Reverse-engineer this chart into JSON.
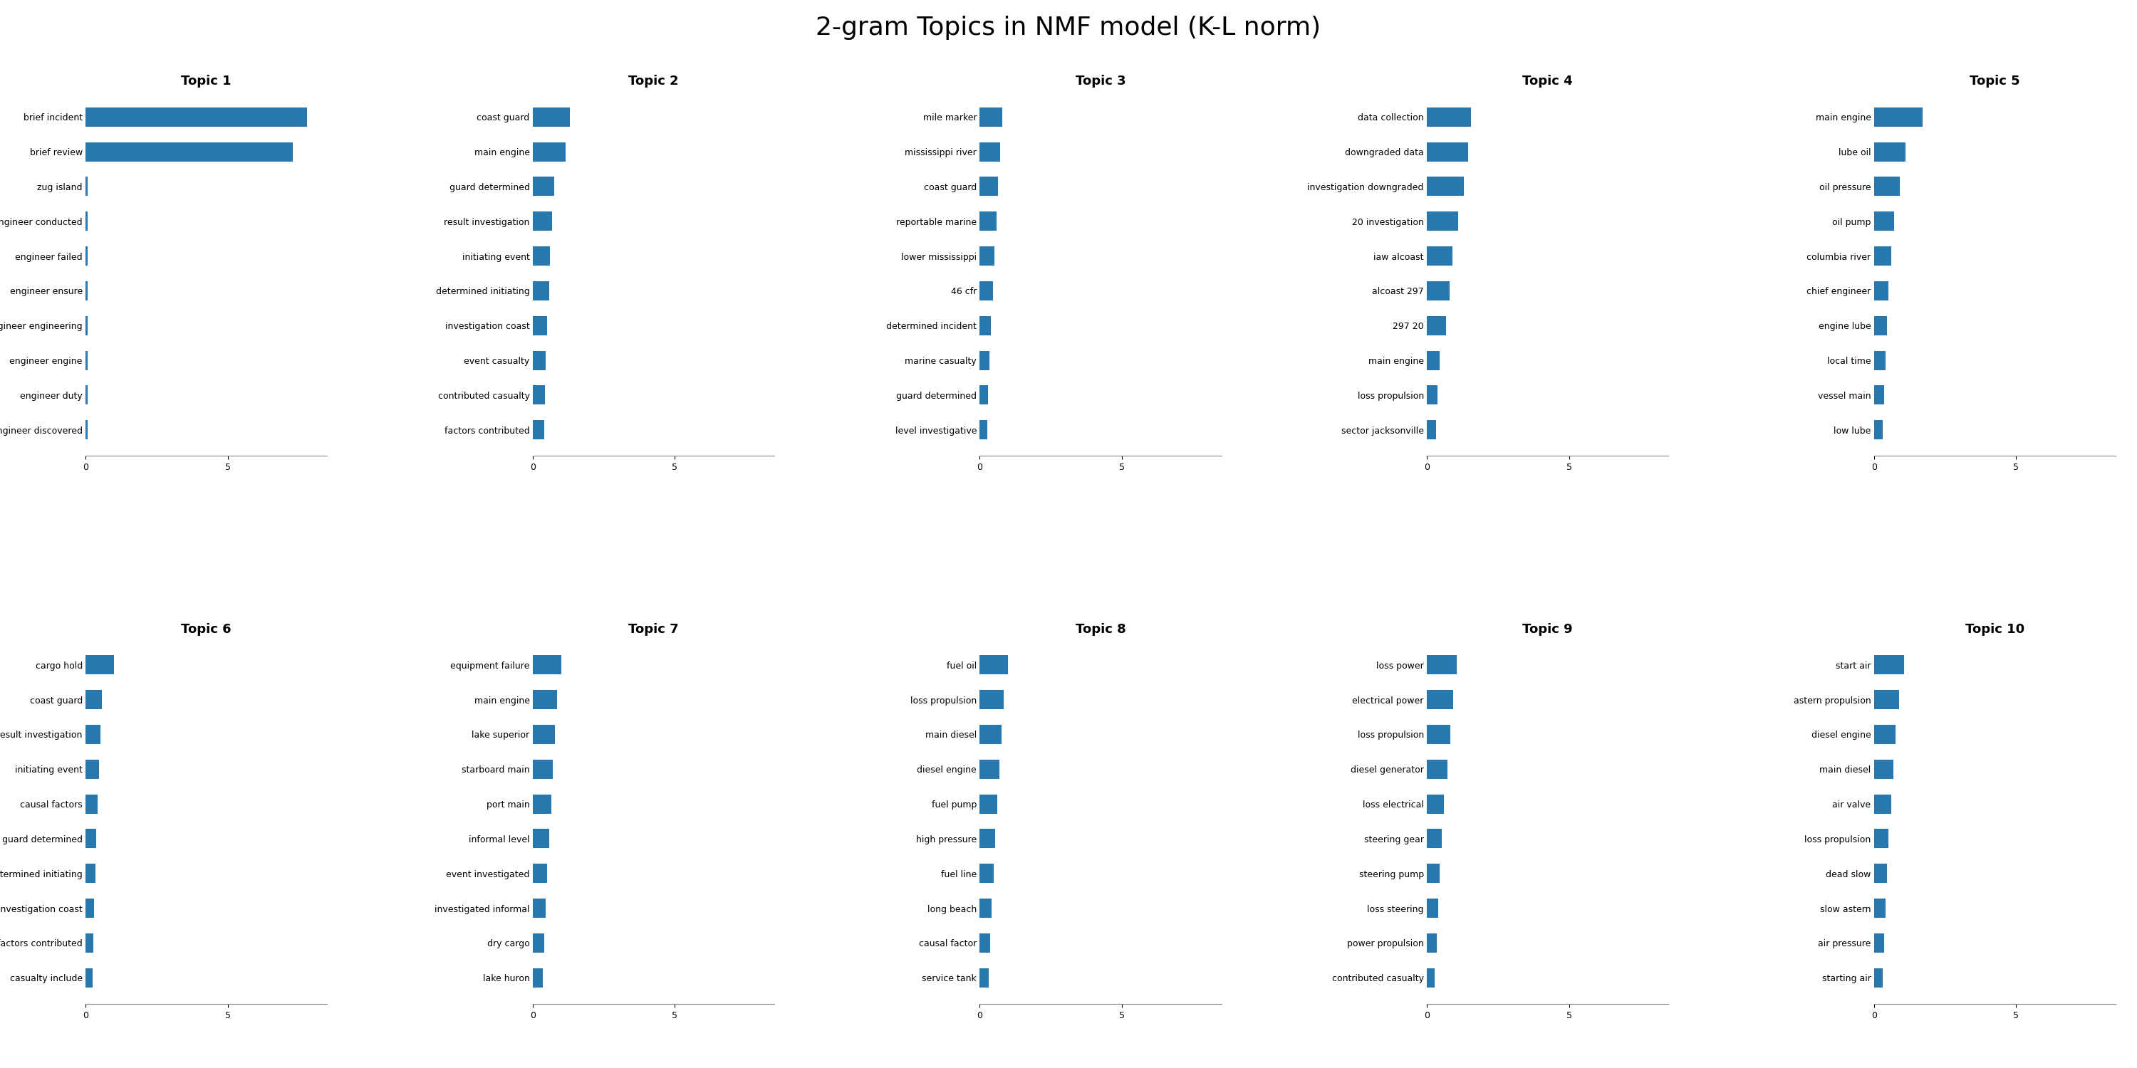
{
  "title": "2-gram Topics in NMF model (K-L norm)",
  "bar_color": "#2878b0",
  "xlim": [
    0,
    8.5
  ],
  "topics": {
    "Topic 1": {
      "terms": [
        "brief incident",
        "brief review",
        "zug island",
        "engineer conducted",
        "engineer failed",
        "engineer ensure",
        "engineer engineering",
        "engineer engine",
        "engineer duty",
        "engineer discovered"
      ],
      "values": [
        7.8,
        7.3,
        0.08,
        0.08,
        0.08,
        0.08,
        0.08,
        0.08,
        0.08,
        0.08
      ]
    },
    "Topic 2": {
      "terms": [
        "coast guard",
        "main engine",
        "guard determined",
        "result investigation",
        "initiating event",
        "determined initiating",
        "investigation coast",
        "event casualty",
        "contributed casualty",
        "factors contributed"
      ],
      "values": [
        1.3,
        1.15,
        0.75,
        0.68,
        0.62,
        0.58,
        0.52,
        0.47,
        0.43,
        0.4
      ]
    },
    "Topic 3": {
      "terms": [
        "mile marker",
        "mississippi river",
        "coast guard",
        "reportable marine",
        "lower mississippi",
        "46 cfr",
        "determined incident",
        "marine casualty",
        "guard determined",
        "level investigative"
      ],
      "values": [
        0.8,
        0.72,
        0.65,
        0.58,
        0.52,
        0.46,
        0.4,
        0.35,
        0.3,
        0.27
      ]
    },
    "Topic 4": {
      "terms": [
        "data collection",
        "downgraded data",
        "investigation downgraded",
        "20 investigation",
        "iaw alcoast",
        "alcoast 297",
        "297 20",
        "main engine",
        "loss propulsion",
        "sector jacksonville"
      ],
      "values": [
        1.55,
        1.45,
        1.3,
        1.1,
        0.9,
        0.8,
        0.68,
        0.45,
        0.38,
        0.32
      ]
    },
    "Topic 5": {
      "terms": [
        "main engine",
        "lube oil",
        "oil pressure",
        "oil pump",
        "columbia river",
        "chief engineer",
        "engine lube",
        "local time",
        "vessel main",
        "low lube"
      ],
      "values": [
        1.7,
        1.1,
        0.9,
        0.72,
        0.6,
        0.52,
        0.46,
        0.4,
        0.35,
        0.3
      ]
    },
    "Topic 6": {
      "terms": [
        "cargo hold",
        "coast guard",
        "result investigation",
        "initiating event",
        "causal factors",
        "guard determined",
        "determined initiating",
        "investigation coast",
        "factors contributed",
        "casualty include"
      ],
      "values": [
        1.0,
        0.58,
        0.52,
        0.47,
        0.42,
        0.38,
        0.35,
        0.3,
        0.27,
        0.24
      ]
    },
    "Topic 7": {
      "terms": [
        "equipment failure",
        "main engine",
        "lake superior",
        "starboard main",
        "port main",
        "informal level",
        "event investigated",
        "investigated informal",
        "dry cargo",
        "lake huron"
      ],
      "values": [
        1.0,
        0.85,
        0.78,
        0.72,
        0.65,
        0.58,
        0.52,
        0.47,
        0.42,
        0.37
      ]
    },
    "Topic 8": {
      "terms": [
        "fuel oil",
        "loss propulsion",
        "main diesel",
        "diesel engine",
        "fuel pump",
        "high pressure",
        "fuel line",
        "long beach",
        "causal factor",
        "service tank"
      ],
      "values": [
        1.0,
        0.85,
        0.78,
        0.7,
        0.62,
        0.55,
        0.48,
        0.42,
        0.37,
        0.32
      ]
    },
    "Topic 9": {
      "terms": [
        "loss power",
        "electrical power",
        "loss propulsion",
        "diesel generator",
        "loss electrical",
        "steering gear",
        "steering pump",
        "loss steering",
        "power propulsion",
        "contributed casualty"
      ],
      "values": [
        1.05,
        0.92,
        0.82,
        0.72,
        0.6,
        0.52,
        0.45,
        0.4,
        0.35,
        0.28
      ]
    },
    "Topic 10": {
      "terms": [
        "start air",
        "astern propulsion",
        "diesel engine",
        "main diesel",
        "air valve",
        "loss propulsion",
        "dead slow",
        "slow astern",
        "air pressure",
        "starting air"
      ],
      "values": [
        1.05,
        0.88,
        0.75,
        0.68,
        0.6,
        0.52,
        0.46,
        0.4,
        0.35,
        0.3
      ]
    }
  }
}
